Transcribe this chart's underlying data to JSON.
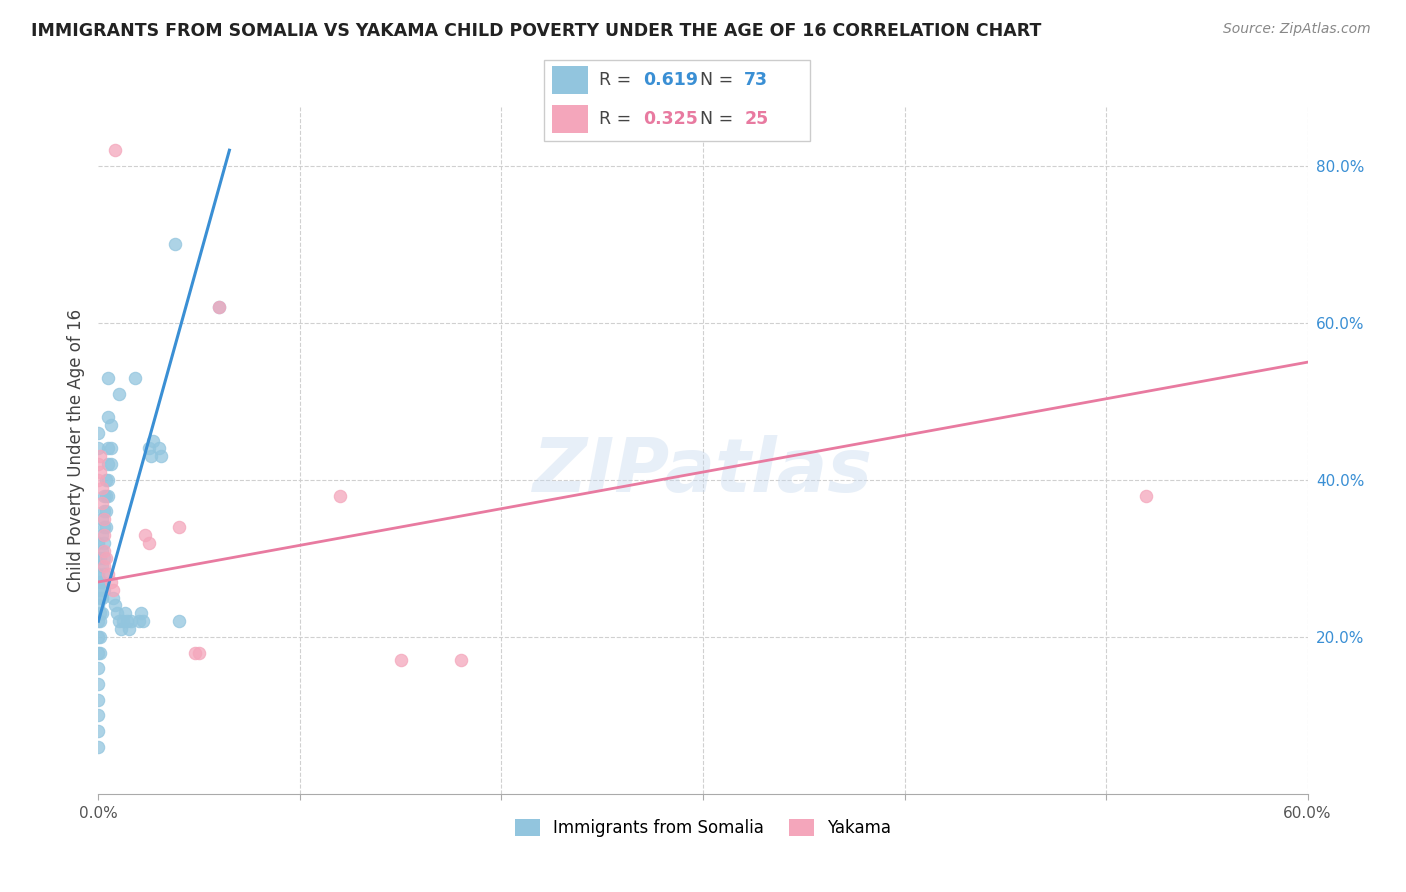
{
  "title": "IMMIGRANTS FROM SOMALIA VS YAKAMA CHILD POVERTY UNDER THE AGE OF 16 CORRELATION CHART",
  "source": "Source: ZipAtlas.com",
  "ylabel": "Child Poverty Under the Age of 16",
  "xlim": [
    0.0,
    0.6
  ],
  "ylim": [
    0.0,
    0.875
  ],
  "x_ticks": [
    0.0,
    0.1,
    0.2,
    0.3,
    0.4,
    0.5,
    0.6
  ],
  "x_tick_labels": [
    "0.0%",
    "",
    "",
    "",
    "",
    "",
    "60.0%"
  ],
  "y_ticks_right": [
    0.0,
    0.2,
    0.4,
    0.6,
    0.8
  ],
  "y_tick_labels_right": [
    "",
    "20.0%",
    "40.0%",
    "60.0%",
    "80.0%"
  ],
  "legend1_r": "0.619",
  "legend1_n": "73",
  "legend2_r": "0.325",
  "legend2_n": "25",
  "legend_label1": "Immigrants from Somalia",
  "legend_label2": "Yakama",
  "color_blue": "#92c5de",
  "color_pink": "#f4a6bb",
  "watermark": "ZIPatlas",
  "blue_scatter": [
    [
      0.001,
      0.27
    ],
    [
      0.001,
      0.25
    ],
    [
      0.001,
      0.23
    ],
    [
      0.001,
      0.22
    ],
    [
      0.001,
      0.2
    ],
    [
      0.001,
      0.18
    ],
    [
      0.001,
      0.3
    ],
    [
      0.002,
      0.35
    ],
    [
      0.002,
      0.33
    ],
    [
      0.002,
      0.31
    ],
    [
      0.002,
      0.29
    ],
    [
      0.002,
      0.27
    ],
    [
      0.002,
      0.25
    ],
    [
      0.002,
      0.23
    ],
    [
      0.003,
      0.38
    ],
    [
      0.003,
      0.36
    ],
    [
      0.003,
      0.34
    ],
    [
      0.003,
      0.32
    ],
    [
      0.003,
      0.3
    ],
    [
      0.003,
      0.28
    ],
    [
      0.003,
      0.26
    ],
    [
      0.004,
      0.4
    ],
    [
      0.004,
      0.38
    ],
    [
      0.004,
      0.36
    ],
    [
      0.004,
      0.34
    ],
    [
      0.005,
      0.44
    ],
    [
      0.005,
      0.42
    ],
    [
      0.005,
      0.4
    ],
    [
      0.005,
      0.38
    ],
    [
      0.006,
      0.44
    ],
    [
      0.006,
      0.42
    ],
    [
      0.0,
      0.28
    ],
    [
      0.0,
      0.26
    ],
    [
      0.0,
      0.24
    ],
    [
      0.0,
      0.22
    ],
    [
      0.0,
      0.2
    ],
    [
      0.0,
      0.18
    ],
    [
      0.0,
      0.16
    ],
    [
      0.0,
      0.14
    ],
    [
      0.0,
      0.12
    ],
    [
      0.0,
      0.1
    ],
    [
      0.0,
      0.08
    ],
    [
      0.0,
      0.06
    ],
    [
      0.0,
      0.3
    ],
    [
      0.0,
      0.32
    ],
    [
      0.007,
      0.25
    ],
    [
      0.008,
      0.24
    ],
    [
      0.009,
      0.23
    ],
    [
      0.01,
      0.22
    ],
    [
      0.011,
      0.21
    ],
    [
      0.012,
      0.22
    ],
    [
      0.013,
      0.23
    ],
    [
      0.014,
      0.22
    ],
    [
      0.015,
      0.21
    ],
    [
      0.016,
      0.22
    ],
    [
      0.02,
      0.22
    ],
    [
      0.021,
      0.23
    ],
    [
      0.022,
      0.22
    ],
    [
      0.025,
      0.44
    ],
    [
      0.026,
      0.43
    ],
    [
      0.027,
      0.45
    ],
    [
      0.03,
      0.44
    ],
    [
      0.031,
      0.43
    ],
    [
      0.01,
      0.51
    ],
    [
      0.018,
      0.53
    ],
    [
      0.04,
      0.22
    ],
    [
      0.06,
      0.62
    ],
    [
      0.038,
      0.7
    ],
    [
      0.005,
      0.53
    ],
    [
      0.005,
      0.48
    ],
    [
      0.006,
      0.47
    ],
    [
      0.0,
      0.46
    ],
    [
      0.0,
      0.44
    ]
  ],
  "pink_scatter": [
    [
      0.0,
      0.42
    ],
    [
      0.0,
      0.4
    ],
    [
      0.001,
      0.43
    ],
    [
      0.001,
      0.41
    ],
    [
      0.002,
      0.39
    ],
    [
      0.002,
      0.37
    ],
    [
      0.003,
      0.35
    ],
    [
      0.003,
      0.33
    ],
    [
      0.003,
      0.31
    ],
    [
      0.003,
      0.29
    ],
    [
      0.004,
      0.3
    ],
    [
      0.005,
      0.28
    ],
    [
      0.006,
      0.27
    ],
    [
      0.007,
      0.26
    ],
    [
      0.008,
      0.82
    ],
    [
      0.023,
      0.33
    ],
    [
      0.025,
      0.32
    ],
    [
      0.04,
      0.34
    ],
    [
      0.048,
      0.18
    ],
    [
      0.05,
      0.18
    ],
    [
      0.06,
      0.62
    ],
    [
      0.12,
      0.38
    ],
    [
      0.15,
      0.17
    ],
    [
      0.18,
      0.17
    ],
    [
      0.52,
      0.38
    ]
  ],
  "blue_line_x": [
    0.0,
    0.065
  ],
  "blue_line_y": [
    0.22,
    0.82
  ],
  "pink_line_x": [
    0.0,
    0.6
  ],
  "pink_line_y": [
    0.27,
    0.55
  ]
}
